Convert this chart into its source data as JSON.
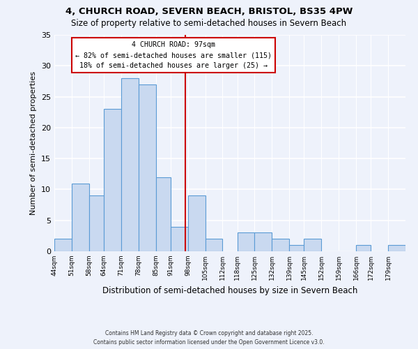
{
  "title_line1": "4, CHURCH ROAD, SEVERN BEACH, BRISTOL, BS35 4PW",
  "title_line2": "Size of property relative to semi-detached houses in Severn Beach",
  "xlabel": "Distribution of semi-detached houses by size in Severn Beach",
  "ylabel": "Number of semi-detached properties",
  "bin_labels": [
    "44sqm",
    "51sqm",
    "58sqm",
    "64sqm",
    "71sqm",
    "78sqm",
    "85sqm",
    "91sqm",
    "98sqm",
    "105sqm",
    "112sqm",
    "118sqm",
    "125sqm",
    "132sqm",
    "139sqm",
    "145sqm",
    "152sqm",
    "159sqm",
    "166sqm",
    "172sqm",
    "179sqm"
  ],
  "bin_edges": [
    44,
    51,
    58,
    64,
    71,
    78,
    85,
    91,
    98,
    105,
    112,
    118,
    125,
    132,
    139,
    145,
    152,
    159,
    166,
    172,
    179,
    186
  ],
  "counts": [
    2,
    11,
    9,
    23,
    28,
    27,
    12,
    4,
    9,
    2,
    0,
    3,
    3,
    2,
    1,
    2,
    0,
    0,
    1,
    0,
    1
  ],
  "bar_color": "#c9d9f0",
  "bar_edge_color": "#5b9bd5",
  "vline_x": 97,
  "vline_color": "#cc0000",
  "annotation_title": "4 CHURCH ROAD: 97sqm",
  "annotation_line1": "← 82% of semi-detached houses are smaller (115)",
  "annotation_line2": "18% of semi-detached houses are larger (25) →",
  "ylim": [
    0,
    35
  ],
  "yticks": [
    0,
    5,
    10,
    15,
    20,
    25,
    30,
    35
  ],
  "background_color": "#eef2fb",
  "grid_color": "#ffffff",
  "footer_line1": "Contains HM Land Registry data © Crown copyright and database right 2025.",
  "footer_line2": "Contains public sector information licensed under the Open Government Licence v3.0."
}
